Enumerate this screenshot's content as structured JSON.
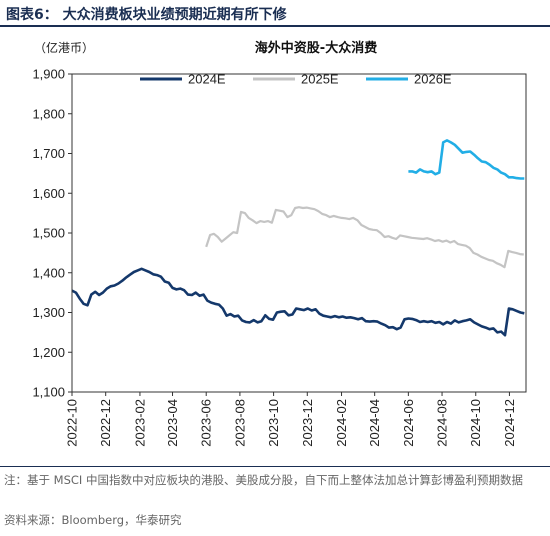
{
  "header": {
    "title": "图表6：  大众消费板块业绩预期近期有所下修"
  },
  "footer": {
    "note": "注：基于 MSCI 中国指数中对应板块的港股、美股成分股，自下而上整体法加总计算彭博盈利预期数据",
    "source": "资料来源：Bloomberg，华泰研究"
  },
  "colors": {
    "2024E": "#14386b",
    "2025E": "#c4c4c4",
    "2026E": "#22aee6",
    "header": "#1a2e52"
  },
  "chart_data": {
    "type": "line",
    "title": "海外中资股-大众消费",
    "unit_label": "（亿港币）",
    "ylim": [
      1100,
      1900
    ],
    "yticks": [
      "1,100",
      "1,200",
      "1,300",
      "1,400",
      "1,500",
      "1,600",
      "1,700",
      "1,800",
      "1,900"
    ],
    "xlim": [
      "2022-10",
      "2024-12-31"
    ],
    "xticks": [
      "2022-10",
      "2022-12",
      "2023-02",
      "2023-04",
      "2023-06",
      "2023-08",
      "2023-10",
      "2023-12",
      "2024-02",
      "2024-04",
      "2024-06",
      "2024-08",
      "2024-10",
      "2024-12"
    ],
    "legend_position": "top",
    "grid": false,
    "series": [
      {
        "name": "2024E",
        "points": [
          [
            "2022-10-01",
            1355
          ],
          [
            "2022-10-08",
            1350
          ],
          [
            "2022-10-15",
            1335
          ],
          [
            "2022-10-22",
            1322
          ],
          [
            "2022-10-29",
            1318
          ],
          [
            "2022-11-05",
            1345
          ],
          [
            "2022-11-12",
            1352
          ],
          [
            "2022-11-19",
            1344
          ],
          [
            "2022-11-26",
            1350
          ],
          [
            "2022-12-03",
            1360
          ],
          [
            "2022-12-10",
            1366
          ],
          [
            "2022-12-17",
            1368
          ],
          [
            "2022-12-24",
            1373
          ],
          [
            "2022-12-31",
            1380
          ],
          [
            "2023-01-07",
            1388
          ],
          [
            "2023-01-14",
            1395
          ],
          [
            "2023-01-21",
            1402
          ],
          [
            "2023-01-28",
            1406
          ],
          [
            "2023-02-04",
            1410
          ],
          [
            "2023-02-11",
            1406
          ],
          [
            "2023-02-18",
            1402
          ],
          [
            "2023-02-25",
            1396
          ],
          [
            "2023-03-04",
            1394
          ],
          [
            "2023-03-11",
            1390
          ],
          [
            "2023-03-18",
            1378
          ],
          [
            "2023-03-25",
            1375
          ],
          [
            "2023-04-01",
            1362
          ],
          [
            "2023-04-08",
            1358
          ],
          [
            "2023-04-15",
            1360
          ],
          [
            "2023-04-22",
            1356
          ],
          [
            "2023-04-29",
            1345
          ],
          [
            "2023-05-06",
            1344
          ],
          [
            "2023-05-13",
            1350
          ],
          [
            "2023-05-20",
            1342
          ],
          [
            "2023-05-27",
            1345
          ],
          [
            "2023-06-03",
            1330
          ],
          [
            "2023-06-10",
            1325
          ],
          [
            "2023-06-17",
            1322
          ],
          [
            "2023-06-24",
            1320
          ],
          [
            "2023-07-01",
            1310
          ],
          [
            "2023-07-08",
            1292
          ],
          [
            "2023-07-15",
            1296
          ],
          [
            "2023-07-22",
            1290
          ],
          [
            "2023-07-29",
            1292
          ],
          [
            "2023-08-05",
            1280
          ],
          [
            "2023-08-12",
            1276
          ],
          [
            "2023-08-19",
            1275
          ],
          [
            "2023-08-26",
            1281
          ],
          [
            "2023-09-02",
            1275
          ],
          [
            "2023-09-09",
            1278
          ],
          [
            "2023-09-16",
            1293
          ],
          [
            "2023-09-23",
            1284
          ],
          [
            "2023-09-30",
            1282
          ],
          [
            "2023-10-07",
            1300
          ],
          [
            "2023-10-14",
            1302
          ],
          [
            "2023-10-21",
            1303
          ],
          [
            "2023-10-28",
            1293
          ],
          [
            "2023-11-04",
            1295
          ],
          [
            "2023-11-11",
            1310
          ],
          [
            "2023-11-18",
            1308
          ],
          [
            "2023-11-25",
            1306
          ],
          [
            "2023-12-02",
            1310
          ],
          [
            "2023-12-09",
            1305
          ],
          [
            "2023-12-16",
            1308
          ],
          [
            "2023-12-23",
            1297
          ],
          [
            "2023-12-30",
            1292
          ],
          [
            "2024-01-06",
            1290
          ],
          [
            "2024-01-13",
            1288
          ],
          [
            "2024-01-20",
            1291
          ],
          [
            "2024-01-27",
            1288
          ],
          [
            "2024-02-03",
            1290
          ],
          [
            "2024-02-10",
            1287
          ],
          [
            "2024-02-17",
            1288
          ],
          [
            "2024-02-24",
            1286
          ],
          [
            "2024-03-02",
            1283
          ],
          [
            "2024-03-09",
            1286
          ],
          [
            "2024-03-16",
            1278
          ],
          [
            "2024-03-23",
            1277
          ],
          [
            "2024-03-30",
            1278
          ],
          [
            "2024-04-06",
            1277
          ],
          [
            "2024-04-13",
            1272
          ],
          [
            "2024-04-20",
            1268
          ],
          [
            "2024-04-27",
            1262
          ],
          [
            "2024-05-04",
            1263
          ],
          [
            "2024-05-11",
            1258
          ],
          [
            "2024-05-18",
            1262
          ],
          [
            "2024-05-25",
            1283
          ],
          [
            "2024-06-01",
            1285
          ],
          [
            "2024-06-08",
            1284
          ],
          [
            "2024-06-15",
            1281
          ],
          [
            "2024-06-22",
            1276
          ],
          [
            "2024-06-29",
            1278
          ],
          [
            "2024-07-06",
            1276
          ],
          [
            "2024-07-13",
            1278
          ],
          [
            "2024-07-20",
            1274
          ],
          [
            "2024-07-27",
            1276
          ],
          [
            "2024-08-03",
            1270
          ],
          [
            "2024-08-10",
            1276
          ],
          [
            "2024-08-17",
            1272
          ],
          [
            "2024-08-24",
            1280
          ],
          [
            "2024-08-31",
            1275
          ],
          [
            "2024-09-07",
            1278
          ],
          [
            "2024-09-14",
            1280
          ],
          [
            "2024-09-21",
            1283
          ],
          [
            "2024-09-28",
            1275
          ],
          [
            "2024-10-05",
            1270
          ],
          [
            "2024-10-12",
            1265
          ],
          [
            "2024-10-19",
            1262
          ],
          [
            "2024-10-26",
            1258
          ],
          [
            "2024-11-02",
            1260
          ],
          [
            "2024-11-09",
            1250
          ],
          [
            "2024-11-16",
            1252
          ],
          [
            "2024-11-23",
            1243
          ],
          [
            "2024-11-30",
            1310
          ],
          [
            "2024-12-07",
            1308
          ],
          [
            "2024-12-14",
            1304
          ],
          [
            "2024-12-21",
            1300
          ],
          [
            "2024-12-28",
            1298
          ]
        ]
      },
      {
        "name": "2025E",
        "points": [
          [
            "2023-06-01",
            1465
          ],
          [
            "2023-06-08",
            1495
          ],
          [
            "2023-06-15",
            1498
          ],
          [
            "2023-06-22",
            1490
          ],
          [
            "2023-06-29",
            1478
          ],
          [
            "2023-07-06",
            1486
          ],
          [
            "2023-07-13",
            1494
          ],
          [
            "2023-07-20",
            1502
          ],
          [
            "2023-07-27",
            1500
          ],
          [
            "2023-08-03",
            1553
          ],
          [
            "2023-08-10",
            1550
          ],
          [
            "2023-08-17",
            1538
          ],
          [
            "2023-08-24",
            1532
          ],
          [
            "2023-08-31",
            1525
          ],
          [
            "2023-09-07",
            1530
          ],
          [
            "2023-09-14",
            1528
          ],
          [
            "2023-09-21",
            1530
          ],
          [
            "2023-09-28",
            1526
          ],
          [
            "2023-10-05",
            1558
          ],
          [
            "2023-10-12",
            1556
          ],
          [
            "2023-10-19",
            1554
          ],
          [
            "2023-10-26",
            1540
          ],
          [
            "2023-11-02",
            1545
          ],
          [
            "2023-11-09",
            1563
          ],
          [
            "2023-11-16",
            1565
          ],
          [
            "2023-11-23",
            1563
          ],
          [
            "2023-11-30",
            1564
          ],
          [
            "2023-12-07",
            1562
          ],
          [
            "2023-12-14",
            1560
          ],
          [
            "2023-12-21",
            1555
          ],
          [
            "2023-12-28",
            1548
          ],
          [
            "2024-01-04",
            1545
          ],
          [
            "2024-01-11",
            1540
          ],
          [
            "2024-01-18",
            1543
          ],
          [
            "2024-01-25",
            1540
          ],
          [
            "2024-02-01",
            1538
          ],
          [
            "2024-02-08",
            1537
          ],
          [
            "2024-02-15",
            1535
          ],
          [
            "2024-02-22",
            1538
          ],
          [
            "2024-03-01",
            1532
          ],
          [
            "2024-03-08",
            1520
          ],
          [
            "2024-03-15",
            1515
          ],
          [
            "2024-03-22",
            1510
          ],
          [
            "2024-03-29",
            1508
          ],
          [
            "2024-04-05",
            1507
          ],
          [
            "2024-04-12",
            1500
          ],
          [
            "2024-04-19",
            1490
          ],
          [
            "2024-04-26",
            1492
          ],
          [
            "2024-05-03",
            1488
          ],
          [
            "2024-05-10",
            1485
          ],
          [
            "2024-05-17",
            1494
          ],
          [
            "2024-05-24",
            1492
          ],
          [
            "2024-05-31",
            1490
          ],
          [
            "2024-06-07",
            1488
          ],
          [
            "2024-06-14",
            1487
          ],
          [
            "2024-06-21",
            1486
          ],
          [
            "2024-06-28",
            1485
          ],
          [
            "2024-07-05",
            1487
          ],
          [
            "2024-07-12",
            1484
          ],
          [
            "2024-07-19",
            1480
          ],
          [
            "2024-07-26",
            1482
          ],
          [
            "2024-08-02",
            1478
          ],
          [
            "2024-08-09",
            1481
          ],
          [
            "2024-08-16",
            1476
          ],
          [
            "2024-08-23",
            1480
          ],
          [
            "2024-08-30",
            1472
          ],
          [
            "2024-09-06",
            1470
          ],
          [
            "2024-09-13",
            1468
          ],
          [
            "2024-09-20",
            1462
          ],
          [
            "2024-09-27",
            1450
          ],
          [
            "2024-10-04",
            1446
          ],
          [
            "2024-10-11",
            1440
          ],
          [
            "2024-10-18",
            1436
          ],
          [
            "2024-10-25",
            1432
          ],
          [
            "2024-11-01",
            1430
          ],
          [
            "2024-11-08",
            1424
          ],
          [
            "2024-11-15",
            1420
          ],
          [
            "2024-11-22",
            1414
          ],
          [
            "2024-11-29",
            1455
          ],
          [
            "2024-12-06",
            1452
          ],
          [
            "2024-12-13",
            1450
          ],
          [
            "2024-12-20",
            1447
          ],
          [
            "2024-12-27",
            1446
          ]
        ]
      },
      {
        "name": "2026E",
        "points": [
          [
            "2024-06-01",
            1655
          ],
          [
            "2024-06-08",
            1655
          ],
          [
            "2024-06-15",
            1652
          ],
          [
            "2024-06-22",
            1660
          ],
          [
            "2024-06-29",
            1655
          ],
          [
            "2024-07-06",
            1653
          ],
          [
            "2024-07-13",
            1655
          ],
          [
            "2024-07-20",
            1648
          ],
          [
            "2024-07-27",
            1652
          ],
          [
            "2024-08-03",
            1728
          ],
          [
            "2024-08-10",
            1733
          ],
          [
            "2024-08-17",
            1728
          ],
          [
            "2024-08-24",
            1722
          ],
          [
            "2024-08-31",
            1712
          ],
          [
            "2024-09-07",
            1702
          ],
          [
            "2024-09-14",
            1704
          ],
          [
            "2024-09-21",
            1705
          ],
          [
            "2024-09-28",
            1697
          ],
          [
            "2024-10-05",
            1688
          ],
          [
            "2024-10-12",
            1680
          ],
          [
            "2024-10-19",
            1678
          ],
          [
            "2024-10-26",
            1672
          ],
          [
            "2024-11-02",
            1664
          ],
          [
            "2024-11-09",
            1660
          ],
          [
            "2024-11-16",
            1652
          ],
          [
            "2024-11-23",
            1648
          ],
          [
            "2024-11-30",
            1640
          ],
          [
            "2024-12-07",
            1640
          ],
          [
            "2024-12-14",
            1638
          ],
          [
            "2024-12-21",
            1637
          ],
          [
            "2024-12-28",
            1637
          ]
        ]
      }
    ]
  }
}
